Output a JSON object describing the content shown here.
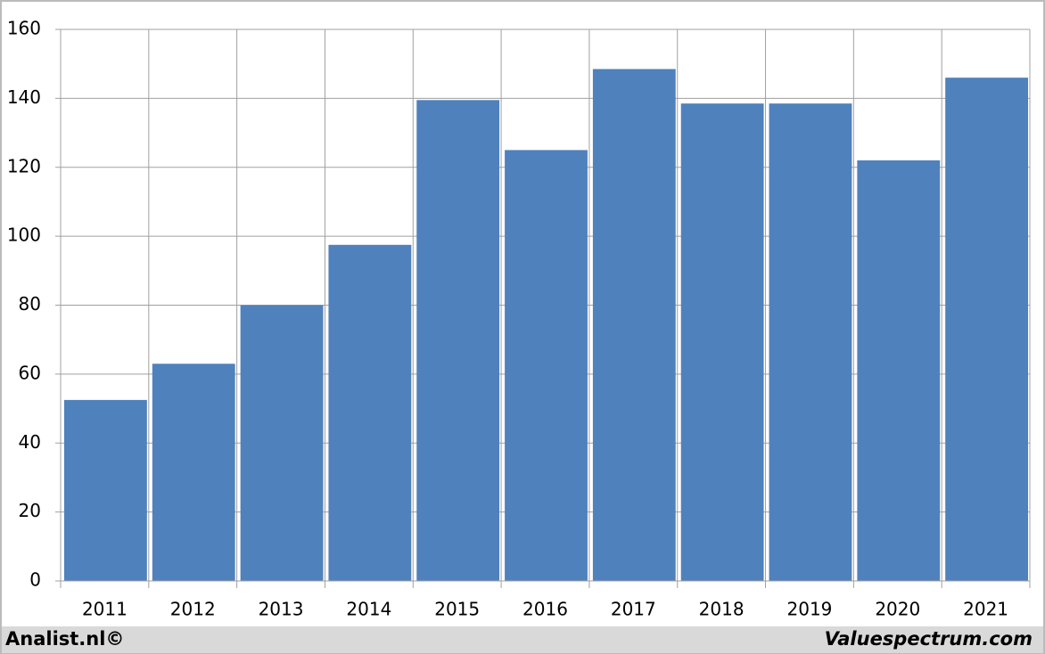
{
  "chart_data": {
    "type": "bar",
    "categories": [
      "2011",
      "2012",
      "2013",
      "2014",
      "2015",
      "2016",
      "2017",
      "2018",
      "2019",
      "2020",
      "2021"
    ],
    "values": [
      52.5,
      63,
      80,
      97.5,
      139.5,
      125,
      148.5,
      138.5,
      138.5,
      122,
      146
    ],
    "color": "#4f81bd",
    "ylim": [
      0,
      160
    ],
    "yticks": [
      0,
      20,
      40,
      60,
      80,
      100,
      120,
      140,
      160
    ],
    "grid": true,
    "source": "Analist.nl©",
    "credit": "Valuespectrum.com"
  }
}
